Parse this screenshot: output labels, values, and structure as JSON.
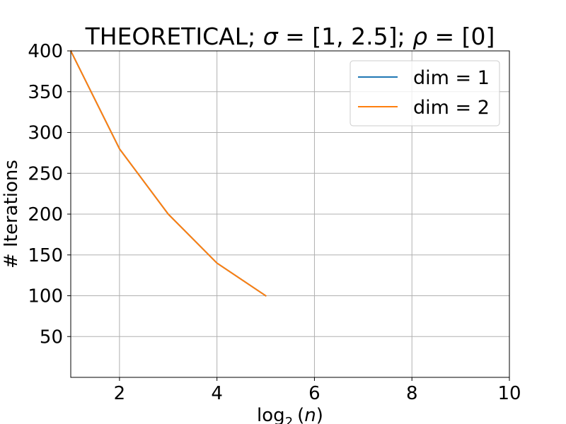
{
  "chart_data": {
    "type": "line",
    "title": "THEORETICAL;  σ = [1, 2.5];  ρ = [0]",
    "title_parts": {
      "prefix": "THEORETICAL;  ",
      "sigma_symbol": "σ",
      "sigma_value": " = [1, 2.5];  ",
      "rho_symbol": "ρ",
      "rho_value": " = [0]"
    },
    "xlabel": "log2(n)",
    "xlabel_parts": {
      "func": "log",
      "sub": "2",
      "open": "(",
      "var": "n",
      "close": ")"
    },
    "ylabel": "# Iterations",
    "xlim": [
      1,
      10
    ],
    "ylim": [
      0,
      400
    ],
    "xticks": [
      2,
      4,
      6,
      8,
      10
    ],
    "yticks": [
      50,
      100,
      150,
      200,
      250,
      300,
      350,
      400
    ],
    "grid": true,
    "legend_position": "top-right",
    "series": [
      {
        "name": "dim = 1",
        "color": "#1f77b4",
        "x": [
          1,
          2,
          3,
          4,
          5
        ],
        "y": [
          400,
          280,
          200,
          140,
          100
        ]
      },
      {
        "name": "dim = 2",
        "color": "#ff7f0e",
        "x": [
          1,
          2,
          3,
          4,
          5
        ],
        "y": [
          400,
          280,
          200,
          140,
          100
        ]
      }
    ]
  }
}
